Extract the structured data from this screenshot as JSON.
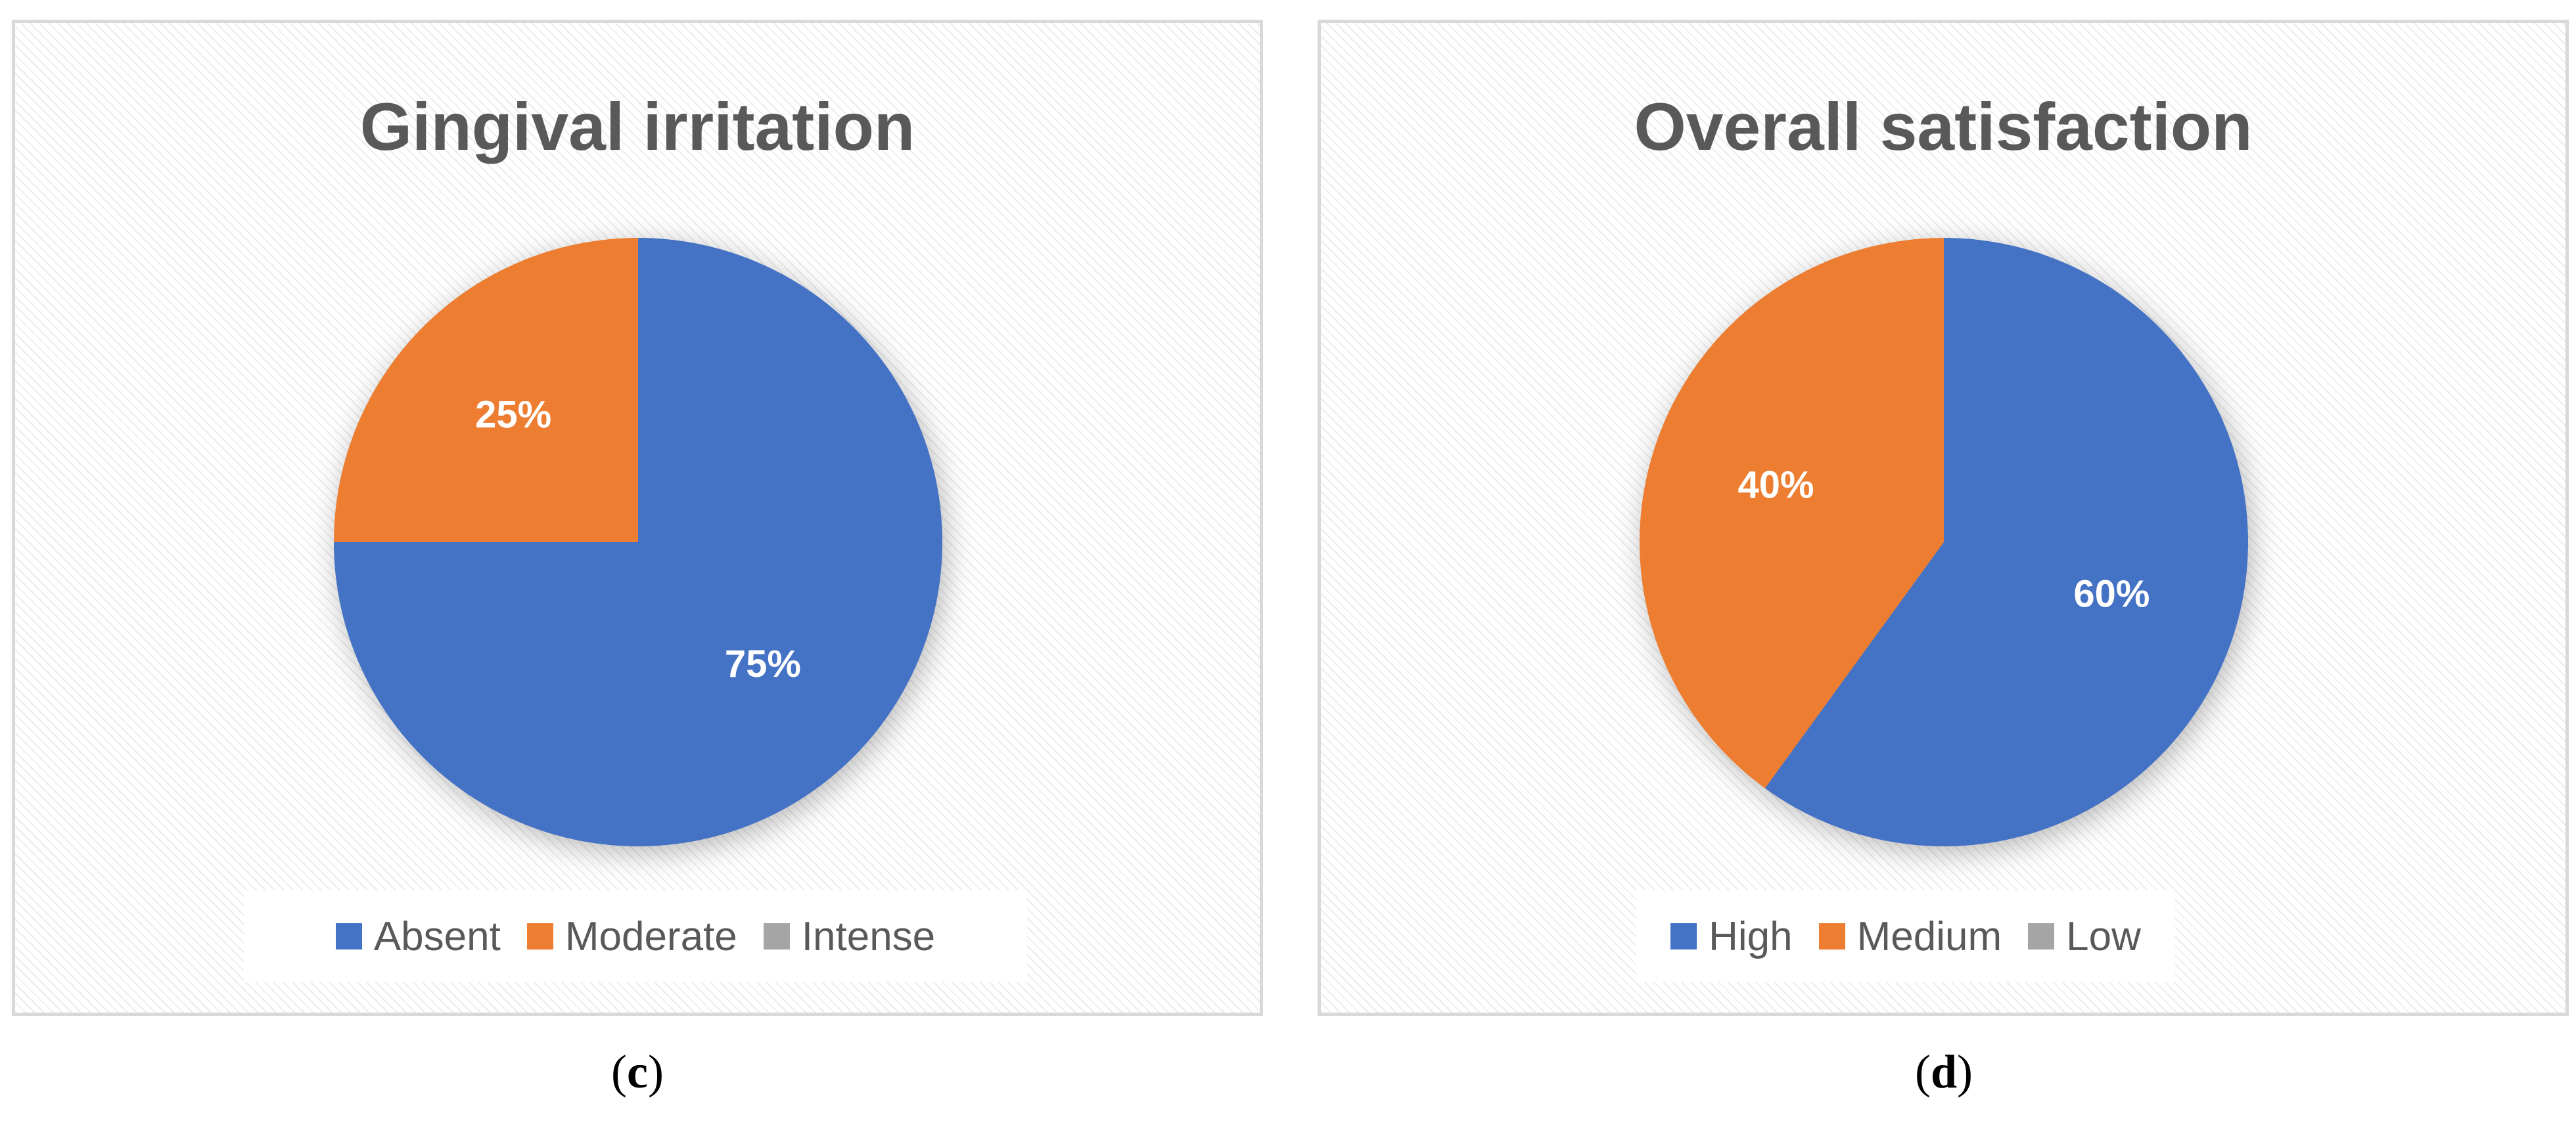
{
  "chart_data": [
    {
      "type": "pie",
      "title": "Gingival irritation",
      "categories": [
        "Absent",
        "Moderate",
        "Intense"
      ],
      "values": [
        75,
        25,
        0
      ],
      "labels": [
        "75%",
        "25%",
        ""
      ],
      "colors": [
        "#4472C4",
        "#ED7D31",
        "#A5A5A5"
      ],
      "legend_position": "bottom",
      "caption": {
        "open": "(",
        "letter": "c",
        "close": ")"
      }
    },
    {
      "type": "pie",
      "title": "Overall satisfaction",
      "categories": [
        "High",
        "Medium",
        "Low"
      ],
      "values": [
        60,
        40,
        0
      ],
      "labels": [
        "60%",
        "40%",
        ""
      ],
      "colors": [
        "#4472C4",
        "#ED7D31",
        "#A5A5A5"
      ],
      "legend_position": "bottom",
      "caption": {
        "open": "(",
        "letter": "d",
        "close": ")"
      }
    }
  ]
}
